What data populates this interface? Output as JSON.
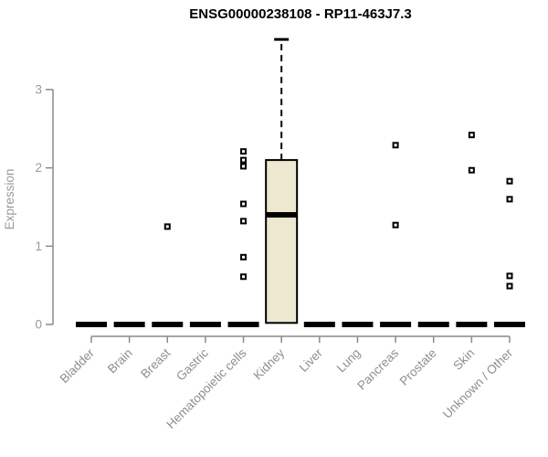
{
  "window": {
    "background": "#ffffff"
  },
  "chart_data": {
    "type": "boxplot",
    "title": "ENSG00000238108 - RP11-463J7.3",
    "ylabel": "Expression",
    "xlabel": "",
    "yticks": [
      0,
      1,
      2,
      3
    ],
    "ylim": [
      0,
      3.7
    ],
    "grid": false,
    "legend": "none",
    "categories": [
      "Bladder",
      "Brain",
      "Breast",
      "Gastric",
      "Hematopoietic cells",
      "Kidney",
      "Liver",
      "Lung",
      "Pancreas",
      "Prostate",
      "Skin",
      "Unknown / Other"
    ],
    "series": [
      {
        "category": "Bladder",
        "q1": 0,
        "median": 0,
        "q3": 0,
        "whisker_low": 0,
        "whisker_high": 0,
        "outliers": []
      },
      {
        "category": "Brain",
        "q1": 0,
        "median": 0,
        "q3": 0,
        "whisker_low": 0,
        "whisker_high": 0,
        "outliers": []
      },
      {
        "category": "Breast",
        "q1": 0,
        "median": 0,
        "q3": 0,
        "whisker_low": 0,
        "whisker_high": 0,
        "outliers": [
          1.25
        ]
      },
      {
        "category": "Gastric",
        "q1": 0,
        "median": 0,
        "q3": 0,
        "whisker_low": 0,
        "whisker_high": 0,
        "outliers": []
      },
      {
        "category": "Hematopoietic cells",
        "q1": 0,
        "median": 0,
        "q3": 0,
        "whisker_low": 0,
        "whisker_high": 0,
        "outliers": [
          2.21,
          2.1,
          2.02,
          1.54,
          1.32,
          0.86,
          0.61
        ]
      },
      {
        "category": "Kidney",
        "q1": 0.02,
        "median": 1.4,
        "q3": 2.1,
        "whisker_low": 0.02,
        "whisker_high": 3.64,
        "outliers": []
      },
      {
        "category": "Liver",
        "q1": 0,
        "median": 0,
        "q3": 0,
        "whisker_low": 0,
        "whisker_high": 0,
        "outliers": []
      },
      {
        "category": "Lung",
        "q1": 0,
        "median": 0,
        "q3": 0,
        "whisker_low": 0,
        "whisker_high": 0,
        "outliers": []
      },
      {
        "category": "Pancreas",
        "q1": 0,
        "median": 0,
        "q3": 0,
        "whisker_low": 0,
        "whisker_high": 0,
        "outliers": [
          2.29,
          1.27
        ]
      },
      {
        "category": "Prostate",
        "q1": 0,
        "median": 0,
        "q3": 0,
        "whisker_low": 0,
        "whisker_high": 0,
        "outliers": []
      },
      {
        "category": "Skin",
        "q1": 0,
        "median": 0,
        "q3": 0,
        "whisker_low": 0,
        "whisker_high": 0,
        "outliers": [
          2.42,
          1.97
        ]
      },
      {
        "category": "Unknown / Other",
        "q1": 0,
        "median": 0,
        "q3": 0,
        "whisker_low": 0,
        "whisker_high": 0,
        "outliers": [
          1.83,
          1.6,
          0.62,
          0.49
        ]
      }
    ],
    "colors": {
      "box_fill": "#EDE8D0",
      "box_border": "#000000",
      "median": "#000000",
      "flat_bar": "#000000",
      "outlier_stroke": "#000000",
      "outlier_fill": "#ffffff",
      "axis": "#8a8a8a",
      "y_tick_label": "#969aa0",
      "x_tick_label": "#8e8e8e",
      "title": "#000000",
      "background": "#ffffff"
    }
  }
}
